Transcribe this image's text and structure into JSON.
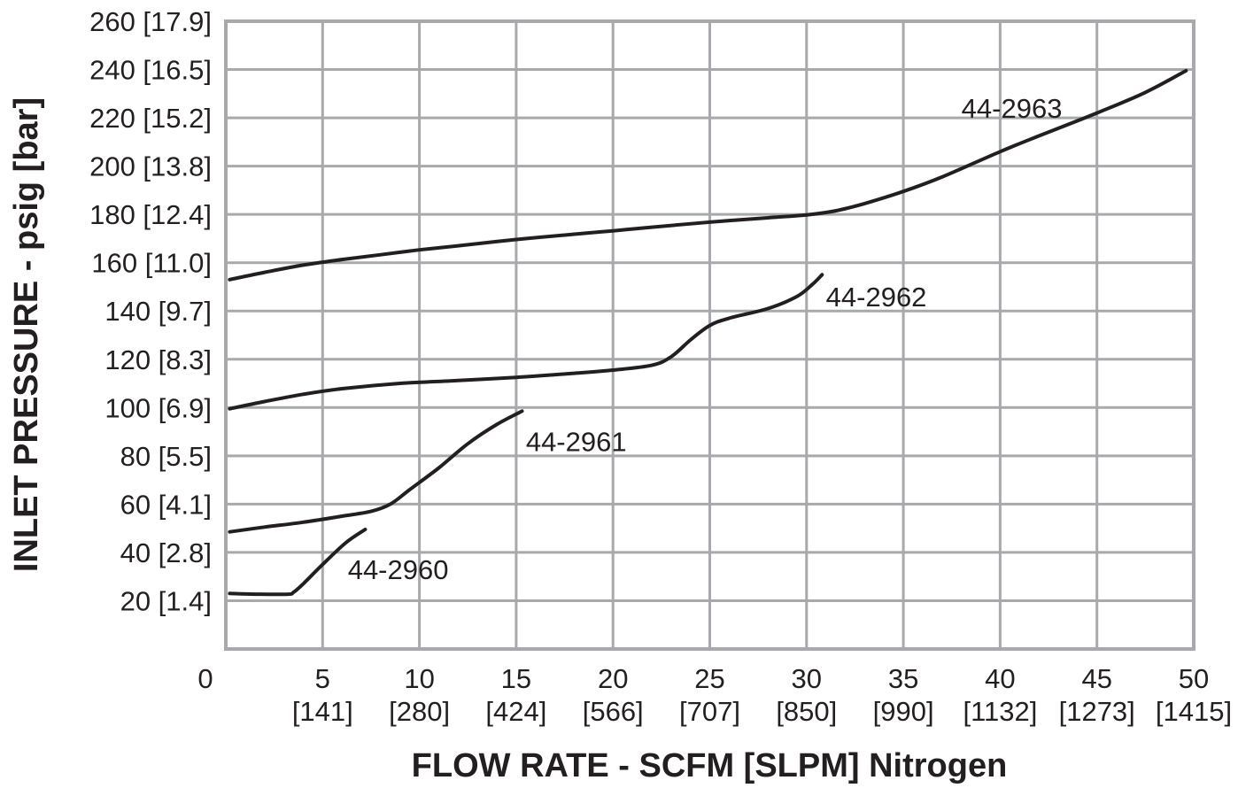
{
  "chart_data": {
    "type": "line",
    "title": "",
    "xlabel": "FLOW RATE - SCFM [SLPM] Nitrogen",
    "ylabel": "INLET PRESSURE - psig [bar]",
    "xlim": [
      0,
      50
    ],
    "ylim": [
      0,
      260
    ],
    "grid": true,
    "x_ticks": [
      {
        "value": 0,
        "label": "0",
        "sublabel": ""
      },
      {
        "value": 5,
        "label": "5",
        "sublabel": "[141]"
      },
      {
        "value": 10,
        "label": "10",
        "sublabel": "[280]"
      },
      {
        "value": 15,
        "label": "15",
        "sublabel": "[424]"
      },
      {
        "value": 20,
        "label": "20",
        "sublabel": "[566]"
      },
      {
        "value": 25,
        "label": "25",
        "sublabel": "[707]"
      },
      {
        "value": 30,
        "label": "30",
        "sublabel": "[850]"
      },
      {
        "value": 35,
        "label": "35",
        "sublabel": "[990]"
      },
      {
        "value": 40,
        "label": "40",
        "sublabel": "[1132]"
      },
      {
        "value": 45,
        "label": "45",
        "sublabel": "[1273]"
      },
      {
        "value": 50,
        "label": "50",
        "sublabel": "[1415]"
      }
    ],
    "y_ticks": [
      {
        "value": 20,
        "label": "20 [1.4]"
      },
      {
        "value": 40,
        "label": "40 [2.8]"
      },
      {
        "value": 60,
        "label": "60 [4.1]"
      },
      {
        "value": 80,
        "label": "80 [5.5]"
      },
      {
        "value": 100,
        "label": "100 [6.9]"
      },
      {
        "value": 120,
        "label": "120 [8.3]"
      },
      {
        "value": 140,
        "label": "140 [9.7]"
      },
      {
        "value": 160,
        "label": "160 [11.0]"
      },
      {
        "value": 180,
        "label": "180 [12.4]"
      },
      {
        "value": 200,
        "label": "200 [13.8]"
      },
      {
        "value": 220,
        "label": "220 [15.2]"
      },
      {
        "value": 240,
        "label": "240 [16.5]"
      },
      {
        "value": 260,
        "label": "260 [17.9]"
      }
    ],
    "series": [
      {
        "name": "44-2960",
        "x": [
          0.2,
          1.5,
          3.2,
          3.5,
          4.0,
          5.0,
          6.2,
          7.2
        ],
        "y": [
          23,
          22.7,
          22.7,
          23.5,
          27,
          35,
          44,
          49.5
        ],
        "label_at": [
          6.3,
          33
        ]
      },
      {
        "name": "44-2961",
        "x": [
          0.2,
          2,
          4,
          6,
          7.5,
          8.5,
          9.5,
          11,
          12.5,
          14,
          15.3
        ],
        "y": [
          48.5,
          50.5,
          52.5,
          55,
          57,
          60,
          66,
          75,
          85,
          93,
          98.5
        ],
        "label_at": [
          15.5,
          86
        ]
      },
      {
        "name": "44-2962",
        "x": [
          0.2,
          2,
          4,
          6,
          9,
          12,
          15,
          18,
          20,
          22,
          23,
          24,
          25,
          26,
          28,
          29.5,
          30.3,
          30.8
        ],
        "y": [
          99.5,
          102.5,
          105.5,
          107.8,
          110,
          111.2,
          112.5,
          114.2,
          115.5,
          117.5,
          121,
          128,
          134,
          137,
          141,
          146,
          151,
          155
        ],
        "label_at": [
          31,
          146
        ]
      },
      {
        "name": "44-2963",
        "x": [
          0.2,
          2,
          4,
          6,
          8,
          10,
          12,
          15,
          18,
          20,
          22,
          25,
          28,
          30,
          31.5,
          33,
          35,
          37,
          40,
          42,
          45,
          47.5,
          49.6
        ],
        "y": [
          153,
          156,
          159,
          161.3,
          163.3,
          165.3,
          167,
          169.6,
          171.8,
          173.2,
          174.7,
          176.8,
          178.6,
          179.8,
          181.5,
          184.5,
          189.5,
          195.5,
          206,
          212.5,
          222,
          230.5,
          239.5
        ],
        "label_at": [
          38,
          224
        ]
      }
    ]
  }
}
